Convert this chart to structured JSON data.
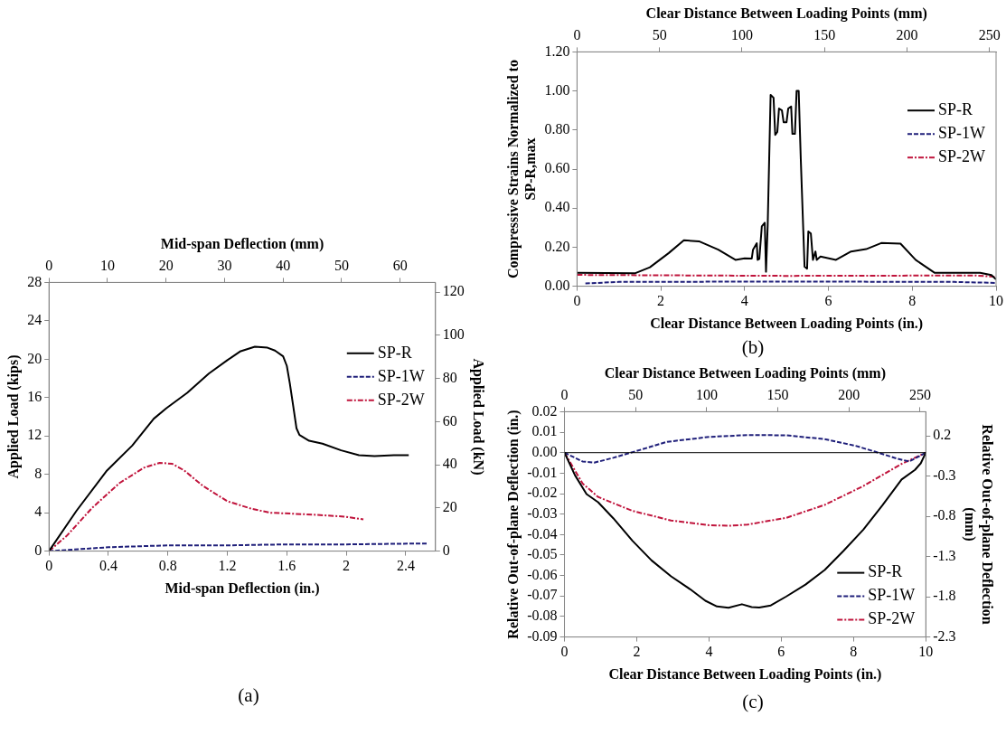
{
  "chart_data": [
    {
      "type": "line",
      "xlabel": "Mid-span Deflection (in.)",
      "x2label": "Mid-span Deflection (mm)",
      "ylabel": "Applied Load (kips)",
      "y2label": "Applied Load (kN)",
      "xlim": [
        0,
        2.6
      ],
      "xticks": [
        0,
        0.4,
        0.8,
        1.2,
        1.6,
        2,
        2.4
      ],
      "x2lim": [
        0,
        66.04
      ],
      "x2ticks": [
        0,
        10,
        20,
        30,
        40,
        50,
        60
      ],
      "ylim": [
        0,
        28
      ],
      "yticks": [
        0,
        4,
        8,
        12,
        16,
        20,
        24,
        28
      ],
      "y2lim": [
        0,
        124.5
      ],
      "y2ticks": [
        0,
        20,
        40,
        60,
        80,
        100,
        120
      ],
      "legend": "right",
      "marker": "none",
      "annotations": [
        "(a)"
      ],
      "series": [
        {
          "name": "SP-R",
          "color": "#000000",
          "line_style": "solid",
          "x": [
            0,
            0.185,
            0.39,
            0.56,
            0.705,
            0.79,
            0.93,
            1.075,
            1.2,
            1.285,
            1.385,
            1.47,
            1.52,
            1.575,
            1.6,
            1.62,
            1.645,
            1.665,
            1.685,
            1.75,
            1.84,
            1.965,
            2.085,
            2.19,
            2.32,
            2.42
          ],
          "values": [
            0,
            4.2,
            8.4,
            11,
            13.8,
            14.9,
            16.5,
            18.5,
            19.9,
            20.8,
            21.3,
            21.2,
            20.9,
            20.3,
            19.3,
            17.5,
            14.9,
            12.8,
            12.1,
            11.5,
            11.2,
            10.5,
            10,
            9.9,
            10,
            10
          ]
        },
        {
          "name": "SP-1W",
          "color": "#1f1f7a",
          "line_style": "dashed",
          "x": [
            0,
            0.4,
            0.8,
            1.2,
            1.6,
            2,
            2.55
          ],
          "values": [
            0,
            0.4,
            0.6,
            0.6,
            0.7,
            0.7,
            0.8
          ]
        },
        {
          "name": "SP-2W",
          "color": "#c0143c",
          "line_style": "dashdot",
          "x": [
            0,
            0.12,
            0.29,
            0.475,
            0.64,
            0.745,
            0.83,
            0.91,
            1.035,
            1.2,
            1.365,
            1.49,
            1.635,
            1.78,
            1.985,
            2.115
          ],
          "values": [
            0,
            1.6,
            4.5,
            7.1,
            8.7,
            9.2,
            9.1,
            8.4,
            6.8,
            5.2,
            4.4,
            4,
            3.9,
            3.8,
            3.6,
            3.3
          ]
        }
      ]
    },
    {
      "type": "line",
      "xlabel": "Clear Distance Between Loading Points (in.)",
      "x2label": "Clear Distance Between Loading Points (mm)",
      "ylabel": "Compressive Strains Normalized to\nSP-R,max",
      "xlim": [
        0,
        10
      ],
      "xticks": [
        0,
        2,
        4,
        6,
        8,
        10
      ],
      "x2lim": [
        0,
        254
      ],
      "x2ticks": [
        0,
        50,
        100,
        150,
        200,
        250
      ],
      "ylim": [
        0,
        1.2
      ],
      "yticks": [
        {
          "value": 0,
          "label": "0.00"
        },
        {
          "value": 0.2,
          "label": "0.20"
        },
        {
          "value": 0.4,
          "label": "0.40"
        },
        {
          "value": 0.6,
          "label": "0.60"
        },
        {
          "value": 0.8,
          "label": "0.80"
        },
        {
          "value": 1,
          "label": "1.00"
        },
        {
          "value": 1.2,
          "label": "1.20"
        }
      ],
      "legend": "top right",
      "marker": "none",
      "annotations": [
        "(b)"
      ],
      "series": [
        {
          "name": "SP-R",
          "color": "#000000",
          "line_style": "solid",
          "x": [
            0,
            1.38,
            1.74,
            2.19,
            2.55,
            2.91,
            3.37,
            3.78,
            4,
            4.17,
            4.2,
            4.29,
            4.31,
            4.35,
            4.41,
            4.48,
            4.51,
            4.55,
            4.62,
            4.69,
            4.73,
            4.78,
            4.82,
            4.89,
            4.93,
            5,
            5.04,
            5.11,
            5.14,
            5.2,
            5.24,
            5.29,
            5.34,
            5.43,
            5.49,
            5.52,
            5.58,
            5.63,
            5.69,
            5.72,
            5.81,
            6.18,
            6.54,
            6.9,
            7.26,
            7.72,
            8.08,
            8.53,
            9.62,
            9.89,
            10
          ],
          "values": [
            0.069,
            0.066,
            0.097,
            0.17,
            0.235,
            0.23,
            0.187,
            0.135,
            0.143,
            0.142,
            0.187,
            0.22,
            0.135,
            0.14,
            0.307,
            0.325,
            0.074,
            0.31,
            0.98,
            0.965,
            0.775,
            0.79,
            0.91,
            0.9,
            0.84,
            0.84,
            0.91,
            0.92,
            0.78,
            0.78,
            1,
            1,
            0.65,
            0.1,
            0.09,
            0.28,
            0.27,
            0.135,
            0.178,
            0.135,
            0.152,
            0.135,
            0.178,
            0.19,
            0.221,
            0.218,
            0.135,
            0.069,
            0.069,
            0.057,
            0.035
          ]
        },
        {
          "name": "SP-1W",
          "color": "#1f1f7a",
          "line_style": "dashed",
          "x": [
            0.2,
            1,
            5,
            9,
            10
          ],
          "values": [
            0.014,
            0.022,
            0.024,
            0.022,
            0.017
          ]
        },
        {
          "name": "SP-2W",
          "color": "#c0143c",
          "line_style": "dashdot",
          "x": [
            0,
            5,
            9.5,
            10
          ],
          "values": [
            0.058,
            0.053,
            0.055,
            0.048
          ]
        }
      ]
    },
    {
      "type": "line",
      "xlabel": "Clear Distance Between Loading Points (in.)",
      "x2label": "Clear Distance Between Loading Points (mm)",
      "ylabel": "Relative Out-of-plane Deflection (in.)",
      "y2label": "Relative Out-of-plane Deflection\n(mm)",
      "xlim": [
        0,
        10
      ],
      "xticks": [
        0,
        2,
        4,
        6,
        8,
        10
      ],
      "x2lim": [
        0,
        254
      ],
      "x2ticks": [
        0,
        50,
        100,
        150,
        200,
        250
      ],
      "ylim": [
        -0.09,
        0.02
      ],
      "yticks": [
        -0.09,
        -0.08,
        -0.07,
        -0.06,
        -0.05,
        -0.04,
        -0.03,
        -0.02,
        -0.01,
        {
          "value": 0,
          "label": "0.00"
        },
        0.01,
        0.02
      ],
      "y2lim": [
        -2.3,
        0.5
      ],
      "y2ticks": [
        -2.3,
        -1.8,
        -1.3,
        -0.8,
        -0.3,
        0.2
      ],
      "legend": "bottom right",
      "marker": "none",
      "annotations": [
        "(c)"
      ],
      "ref_lines": [
        {
          "axis": "y",
          "value": 0,
          "color": "#000000"
        }
      ],
      "series": [
        {
          "name": "SP-R",
          "color": "#000000",
          "line_style": "solid",
          "x": [
            0,
            0.29,
            0.61,
            0.93,
            1.35,
            1.88,
            2.41,
            2.95,
            3.48,
            3.9,
            4.22,
            4.54,
            4.91,
            5.18,
            5.39,
            5.71,
            6.14,
            6.67,
            7.2,
            7.73,
            8.27,
            8.8,
            9.33,
            9.7,
            9.86,
            10
          ],
          "values": [
            0,
            -0.011,
            -0.0202,
            -0.0242,
            -0.032,
            -0.043,
            -0.0526,
            -0.0604,
            -0.0667,
            -0.0723,
            -0.0751,
            -0.0757,
            -0.074,
            -0.0754,
            -0.0756,
            -0.0746,
            -0.0702,
            -0.0644,
            -0.0573,
            -0.0478,
            -0.0376,
            -0.0257,
            -0.0131,
            -0.0084,
            -0.0052,
            0
          ]
        },
        {
          "name": "SP-1W",
          "color": "#1f1f7a",
          "line_style": "dashed",
          "x": [
            0,
            0.5,
            0.82,
            1.35,
            1.99,
            2.84,
            4.01,
            5.07,
            6.14,
            7.2,
            8.05,
            8.59,
            9.22,
            9.54,
            10
          ],
          "values": [
            0,
            -0.0043,
            -0.0049,
            -0.0025,
            0.0008,
            0.0053,
            0.0077,
            0.0086,
            0.0085,
            0.0066,
            0.0034,
            0.0005,
            -0.003,
            -0.0043,
            0
          ]
        },
        {
          "name": "SP-2W",
          "color": "#c0143c",
          "line_style": "dashdot",
          "x": [
            0,
            0.5,
            0.93,
            1.88,
            2.95,
            4.01,
            4.54,
            5.07,
            6.14,
            7.2,
            8.27,
            9.33,
            10
          ],
          "values": [
            0,
            -0.015,
            -0.0216,
            -0.0284,
            -0.0331,
            -0.0354,
            -0.0357,
            -0.0351,
            -0.0318,
            -0.0255,
            -0.0163,
            -0.0055,
            0
          ]
        }
      ]
    }
  ]
}
